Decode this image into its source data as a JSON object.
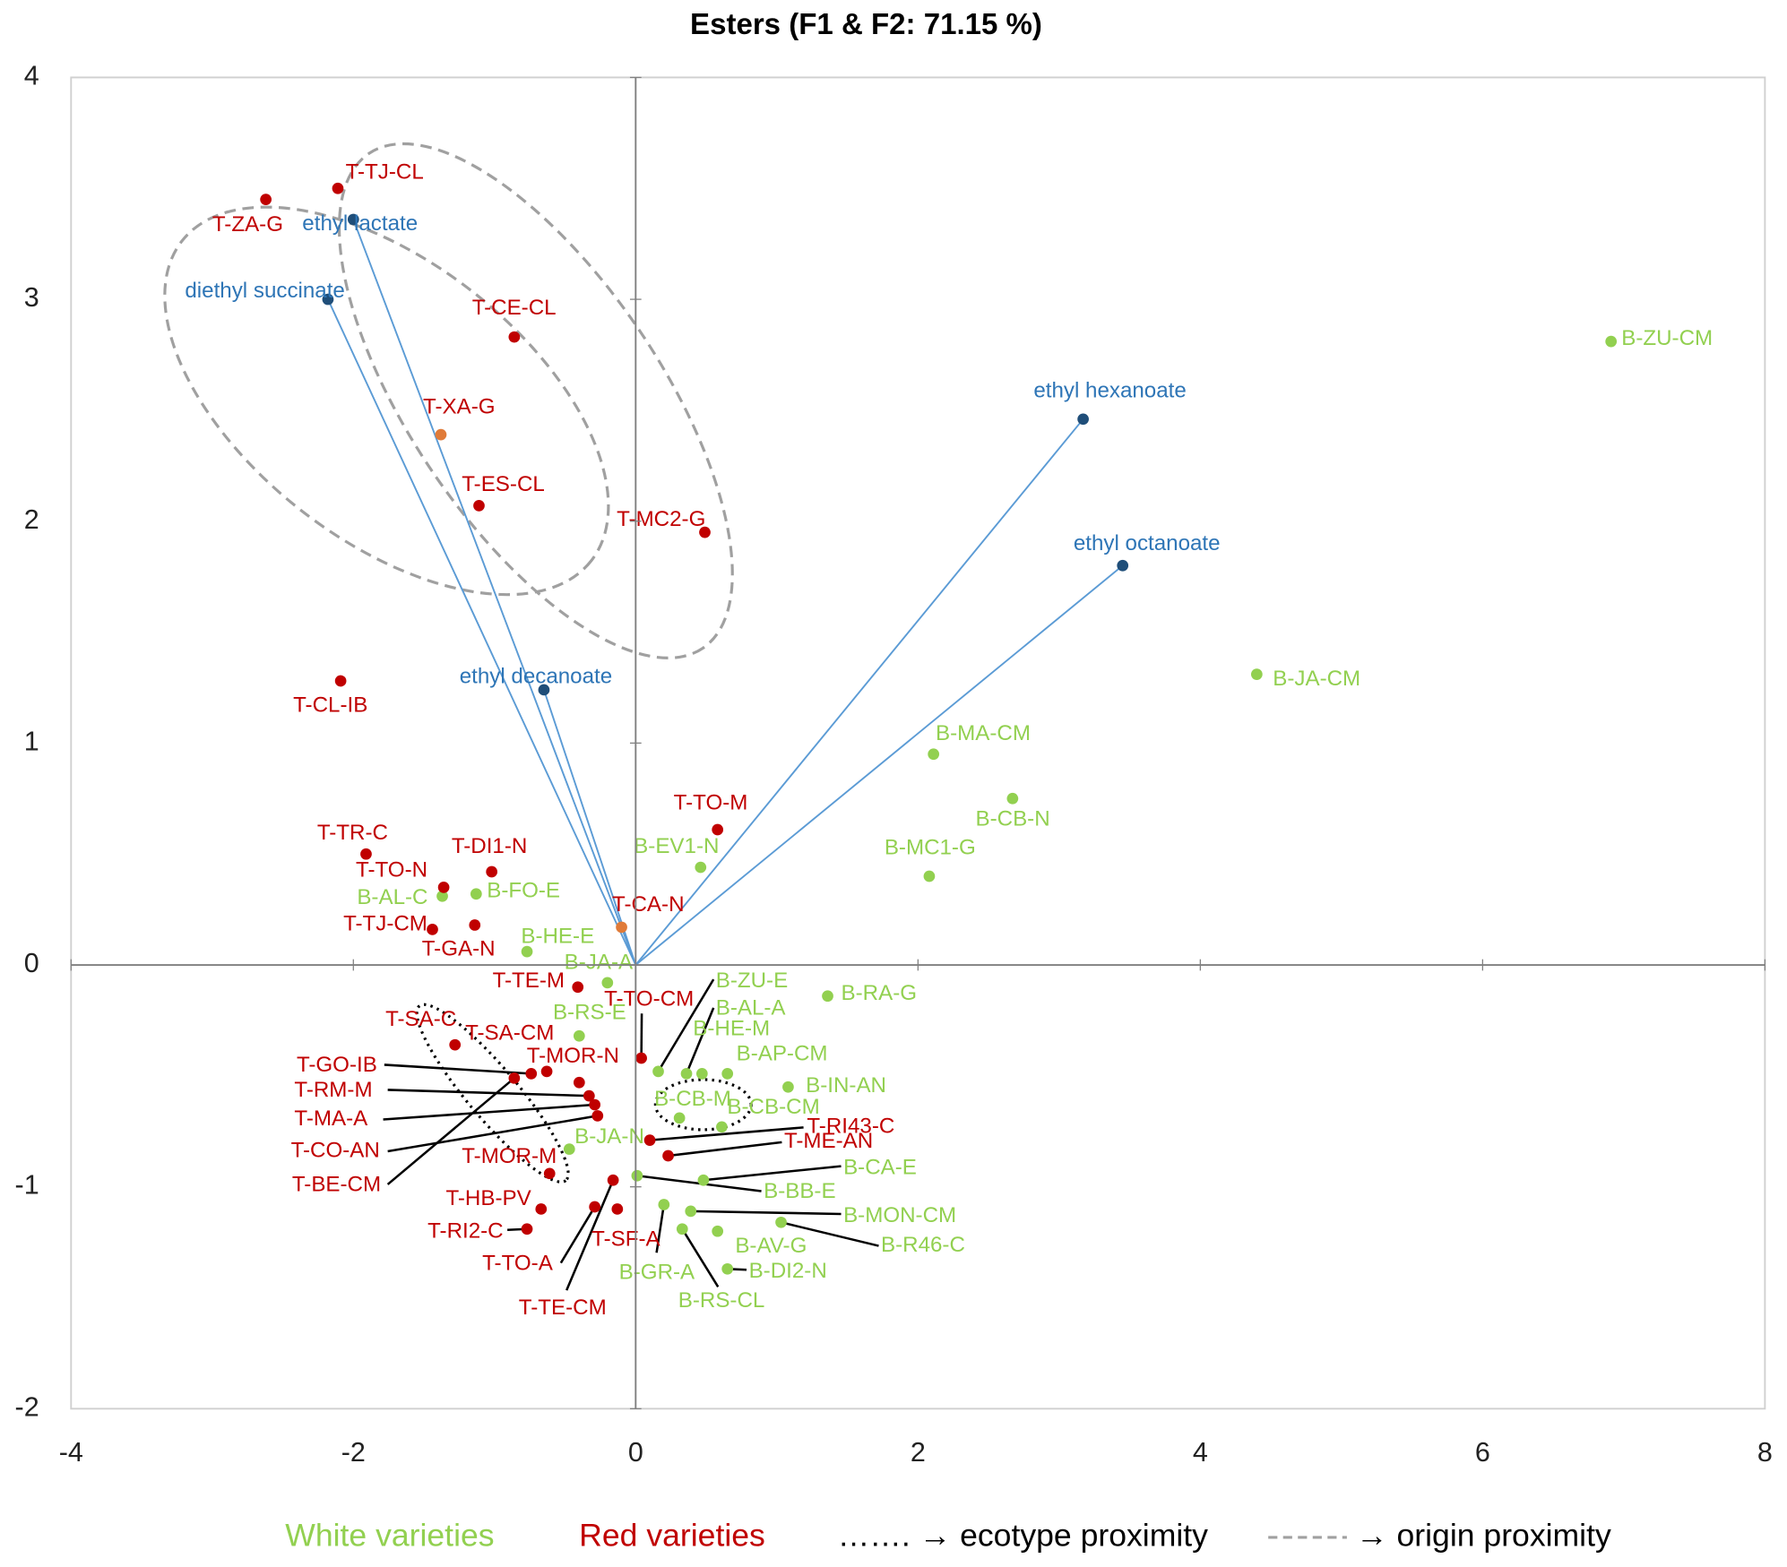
{
  "chart_data": {
    "type": "scatter",
    "title": "Esters (F1 & F2: 71.15 %)",
    "xlim": [
      -4,
      8
    ],
    "ylim": [
      -2,
      4
    ],
    "xticks": [
      -4,
      -2,
      0,
      2,
      4,
      6,
      8
    ],
    "yticks": [
      -2,
      -1,
      0,
      1,
      2,
      3,
      4
    ],
    "series": [
      {
        "name": "White varieties",
        "color": "#92d050",
        "labels": [
          "B-ZU-CM",
          "B-JA-CM",
          "B-MA-CM",
          "B-CB-N",
          "B-MC1-G",
          "B-EV1-N",
          "B-AL-C",
          "B-FO-E",
          "B-HE-E",
          "B-JA-A",
          "B-RS-E",
          "B-ZU-E",
          "B-AL-A",
          "B-HE-M",
          "B-AP-CM",
          "B-RA-G",
          "B-IN-AN",
          "B-CB-M",
          "B-CB-CM",
          "B-JA-N",
          "B-CA-E",
          "B-BB-E",
          "B-MON-CM",
          "B-R46-C",
          "B-GR-A",
          "B-AV-G",
          "B-RS-CL",
          "B-DI2-N"
        ],
        "x": [
          6.91,
          4.4,
          2.11,
          2.67,
          2.08,
          0.46,
          -1.37,
          -1.13,
          -0.77,
          -0.2,
          -0.4,
          0.16,
          0.36,
          0.47,
          0.65,
          1.36,
          1.08,
          0.31,
          0.61,
          -0.47,
          0.48,
          0.01,
          0.39,
          1.03,
          0.2,
          0.58,
          0.33,
          0.65
        ],
        "y": [
          2.81,
          1.31,
          0.95,
          0.75,
          0.4,
          0.44,
          0.31,
          0.32,
          0.06,
          -0.08,
          -0.32,
          -0.48,
          -0.49,
          -0.49,
          -0.49,
          -0.14,
          -0.55,
          -0.69,
          -0.73,
          -0.83,
          -0.97,
          -0.95,
          -1.11,
          -1.16,
          -1.08,
          -1.2,
          -1.19,
          -1.37
        ]
      },
      {
        "name": "Red varieties",
        "color": "#c00000",
        "labels": [
          "T-ZA-G",
          "T-TJ-CL",
          "T-CE-CL",
          "T-XA-G",
          "T-ES-CL",
          "T-MC2-G",
          "T-CL-IB",
          "T-TO-M",
          "T-TR-C",
          "T-TO-N",
          "T-DI1-N",
          "T-TJ-CM",
          "T-GA-N",
          "T-CA-N",
          "T-TE-M",
          "T-TO-CM",
          "T-SA-C",
          "T-SA-CM",
          "T-MOR-N",
          "T-GO-IB",
          "T-RM-M",
          "T-MA-A",
          "T-CO-AN",
          "T-BE-CM",
          "T-MOR-M",
          "T-RI43-C",
          "T-ME-AN",
          "T-HB-PV",
          "T-RI2-C",
          "T-TO-A",
          "T-TE-CM",
          "T-SF-A"
        ],
        "x": [
          -2.62,
          -2.11,
          -0.86,
          -1.38,
          -1.11,
          0.49,
          -2.09,
          0.58,
          -1.91,
          -1.36,
          -1.02,
          -1.44,
          -1.14,
          -0.1,
          -0.41,
          0.04,
          -1.28,
          -0.63,
          -0.4,
          -0.74,
          -0.33,
          -0.29,
          -0.27,
          -0.86,
          -0.61,
          0.1,
          0.23,
          -0.67,
          -0.77,
          -0.29,
          -0.16,
          -0.13
        ],
        "y": [
          3.45,
          3.5,
          2.83,
          2.39,
          2.07,
          1.95,
          1.28,
          0.61,
          0.5,
          0.35,
          0.42,
          0.16,
          0.18,
          0.17,
          -0.1,
          -0.42,
          -0.36,
          -0.48,
          -0.53,
          -0.49,
          -0.59,
          -0.63,
          -0.68,
          -0.51,
          -0.94,
          -0.79,
          -0.86,
          -1.1,
          -1.19,
          -1.09,
          -0.97,
          -1.1
        ],
        "colors": [
          "#c00000",
          "#c00000",
          "#c00000",
          "#e07b39",
          "#c00000",
          "#c00000",
          "#c00000",
          "#c00000",
          "#c00000",
          "#c00000",
          "#c00000",
          "#c00000",
          "#c00000",
          "#e07b39",
          "#c00000",
          "#c00000",
          "#c00000",
          "#c00000",
          "#c00000",
          "#c00000",
          "#c00000",
          "#c00000",
          "#c00000",
          "#c00000",
          "#c00000",
          "#c00000",
          "#c00000",
          "#c00000",
          "#c00000",
          "#c00000",
          "#c00000",
          "#c00000"
        ]
      },
      {
        "vector": true,
        "color": "#1f4e79",
        "line_color": "#5b9bd5",
        "label_color": "#2e75b6",
        "labels": [
          "ethyl lactate",
          "diethyl succinate",
          "ethyl hexanoate",
          "ethyl octanoate",
          "ethyl decanoate"
        ],
        "x": [
          -2.0,
          -2.18,
          3.17,
          3.45,
          -0.65
        ],
        "y": [
          3.36,
          3.0,
          2.46,
          1.8,
          1.24
        ]
      }
    ],
    "legend_notes": [
      "……. → ecotype proximity",
      "→ origin proximity"
    ]
  }
}
